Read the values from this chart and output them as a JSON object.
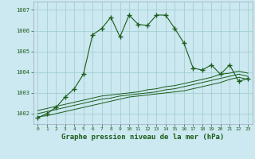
{
  "title": "Graphe pression niveau de la mer (hPa)",
  "bg_color": "#cce8f0",
  "grid_color": "#99cccc",
  "line_color": "#1a5c1a",
  "x_ticks": [
    0,
    1,
    2,
    3,
    4,
    5,
    6,
    7,
    8,
    9,
    10,
    11,
    12,
    13,
    14,
    15,
    16,
    17,
    18,
    19,
    20,
    21,
    22,
    23
  ],
  "ylim": [
    1001.5,
    1007.4
  ],
  "yticks": [
    1002,
    1003,
    1004,
    1005,
    1006,
    1007
  ],
  "main_line": [
    1001.8,
    1002.0,
    1002.3,
    1002.8,
    1003.2,
    1003.9,
    1005.8,
    1006.1,
    1006.65,
    1005.7,
    1006.75,
    1006.3,
    1006.25,
    1006.75,
    1006.75,
    1006.1,
    1005.4,
    1004.2,
    1004.1,
    1004.35,
    1003.9,
    1004.35,
    1003.55,
    1003.7
  ],
  "flat_line1": [
    1001.85,
    1001.9,
    1002.0,
    1002.1,
    1002.2,
    1002.3,
    1002.4,
    1002.5,
    1002.6,
    1002.7,
    1002.8,
    1002.85,
    1002.9,
    1002.95,
    1003.0,
    1003.05,
    1003.1,
    1003.2,
    1003.3,
    1003.4,
    1003.5,
    1003.65,
    1003.75,
    1003.65
  ],
  "flat_line2": [
    1002.0,
    1002.1,
    1002.2,
    1002.3,
    1002.4,
    1002.5,
    1002.6,
    1002.7,
    1002.75,
    1002.85,
    1002.9,
    1002.95,
    1003.0,
    1003.05,
    1003.15,
    1003.2,
    1003.3,
    1003.4,
    1003.5,
    1003.6,
    1003.7,
    1003.8,
    1003.9,
    1003.8
  ],
  "flat_line3": [
    1002.15,
    1002.25,
    1002.35,
    1002.45,
    1002.55,
    1002.65,
    1002.75,
    1002.85,
    1002.9,
    1002.95,
    1003.0,
    1003.05,
    1003.15,
    1003.2,
    1003.3,
    1003.35,
    1003.45,
    1003.55,
    1003.65,
    1003.75,
    1003.9,
    1003.95,
    1004.05,
    1003.95
  ]
}
